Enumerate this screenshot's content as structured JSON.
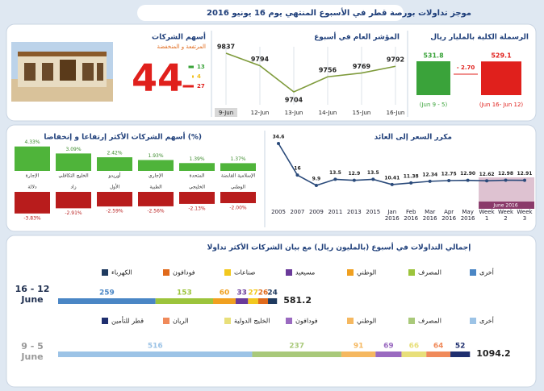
{
  "header": {
    "title": "موجز تداولات بورصة قطر في الأسبوع المنتهي يوم 16 يونيو 2016"
  },
  "chart_data": [
    {
      "type": "bar",
      "title": "الرسملة الكلية بالمليار ريال",
      "categories": [
        "(Jun 9 - 5)",
        "(Jun 16- Jun 12)"
      ],
      "values": [
        531.8,
        529.1
      ],
      "colors": [
        "#3aa33a",
        "#e0201c"
      ],
      "annotation": "- 2.70"
    },
    {
      "type": "line",
      "title": "المؤشر العام في أسبوع",
      "categories": [
        "9-Jun",
        "12-Jun",
        "13-Jun",
        "14-Jun",
        "15-Jun",
        "16-Jun"
      ],
      "values": [
        9837,
        9794,
        9704,
        9756,
        9769,
        9792
      ],
      "color": "#7f9b3c"
    },
    {
      "type": "count",
      "title": "أسهم الشركات",
      "subtitle": "المرتفعة و المنخفضة",
      "total": 44,
      "values": [
        13,
        4,
        27
      ],
      "colors": [
        "#3aa33a",
        "#f2c01e",
        "#e0201c"
      ]
    },
    {
      "type": "movers",
      "title": "أسهم الشركات الأكثر إرتفاعا و إنخفاضا (%)",
      "series": [
        {
          "categories": [
            "الإجارة",
            "الخليج التكافلي",
            "أوريدو",
            "الإجاري",
            "المتحدة",
            "الإسلامية القابضة"
          ],
          "values": [
            4.33,
            3.09,
            2.42,
            1.93,
            1.39,
            1.37
          ],
          "value_labels": [
            "4.33%",
            "3.09%",
            "2.42%",
            "1.93%",
            "1.39%",
            "1.37%"
          ],
          "color": "#4fb43a"
        },
        {
          "categories": [
            "دلالة",
            "زاد",
            "الأول",
            "الطبية",
            "الخليجي",
            "الوطني"
          ],
          "values": [
            -3.83,
            -2.91,
            -2.59,
            -2.56,
            -2.13,
            -2.0
          ],
          "value_labels": [
            "-3.83%",
            "-2.91%",
            "-2.59%",
            "-2.56%",
            "-2.13%",
            "-2.00%"
          ],
          "color": "#b81c1c"
        }
      ]
    },
    {
      "type": "line",
      "title": "مكرر السعر إلى العائد",
      "categories": [
        "2005",
        "2007",
        "2009",
        "2011",
        "2013",
        "2015",
        "Jan 2016",
        "Feb 2016",
        "Mar 2016",
        "Apr 2016",
        "May 2016",
        "Week 1",
        "Week 2",
        "Week 3"
      ],
      "values": [
        34.6,
        16,
        9.9,
        13.5,
        12.9,
        13.5,
        10.41,
        11.38,
        12.34,
        12.75,
        12.9,
        12.62,
        12.98,
        12.91
      ],
      "value_labels": [
        "34.6",
        "16",
        "9.9",
        "13.5",
        "12.9",
        "13.5",
        "10.41",
        "11.38",
        "12.34",
        "12.75",
        "12.90",
        "12.62",
        "12.98",
        "12.91"
      ],
      "color": "#2a4a7a",
      "annotation": "June 2016"
    },
    {
      "type": "hstack",
      "title": "إجمالي التداولات في أسبوع (بالمليون ريال) مع بيان الشركات الأكثر تداولا",
      "label": "16 - 12 June",
      "total": 581.2,
      "series": [
        {
          "name": "أخرى",
          "color": "#4a86c5",
          "values": [
            259
          ]
        },
        {
          "name": "المصرف",
          "color": "#9cc43c",
          "values": [
            153
          ]
        },
        {
          "name": "الوطني",
          "color": "#f0a020",
          "values": [
            60
          ]
        },
        {
          "name": "مسيعيد",
          "color": "#6a3a9a",
          "values": [
            33
          ]
        },
        {
          "name": "صناعات",
          "color": "#f2c81e",
          "values": [
            27
          ]
        },
        {
          "name": "فودافون",
          "color": "#e06a1c",
          "values": [
            26
          ]
        },
        {
          "name": "الكهرباء",
          "color": "#1f3a5f",
          "values": [
            24
          ]
        }
      ]
    },
    {
      "type": "hstack",
      "label": "9 - 5 June",
      "total": 1094.2,
      "series": [
        {
          "name": "أخرى",
          "color": "#9cc3e6",
          "values": [
            516
          ]
        },
        {
          "name": "المصرف",
          "color": "#a9c97a",
          "values": [
            237
          ]
        },
        {
          "name": "الوطني",
          "color": "#f5b860",
          "values": [
            91
          ]
        },
        {
          "name": "فودافون",
          "color": "#9a6ac0",
          "values": [
            69
          ]
        },
        {
          "name": "الخليج الدولية",
          "color": "#e8df7a",
          "values": [
            66
          ]
        },
        {
          "name": "الريان",
          "color": "#f08a5a",
          "values": [
            64
          ]
        },
        {
          "name": "قطر للتأمين",
          "color": "#1f2f6f",
          "values": [
            52
          ]
        }
      ]
    }
  ]
}
